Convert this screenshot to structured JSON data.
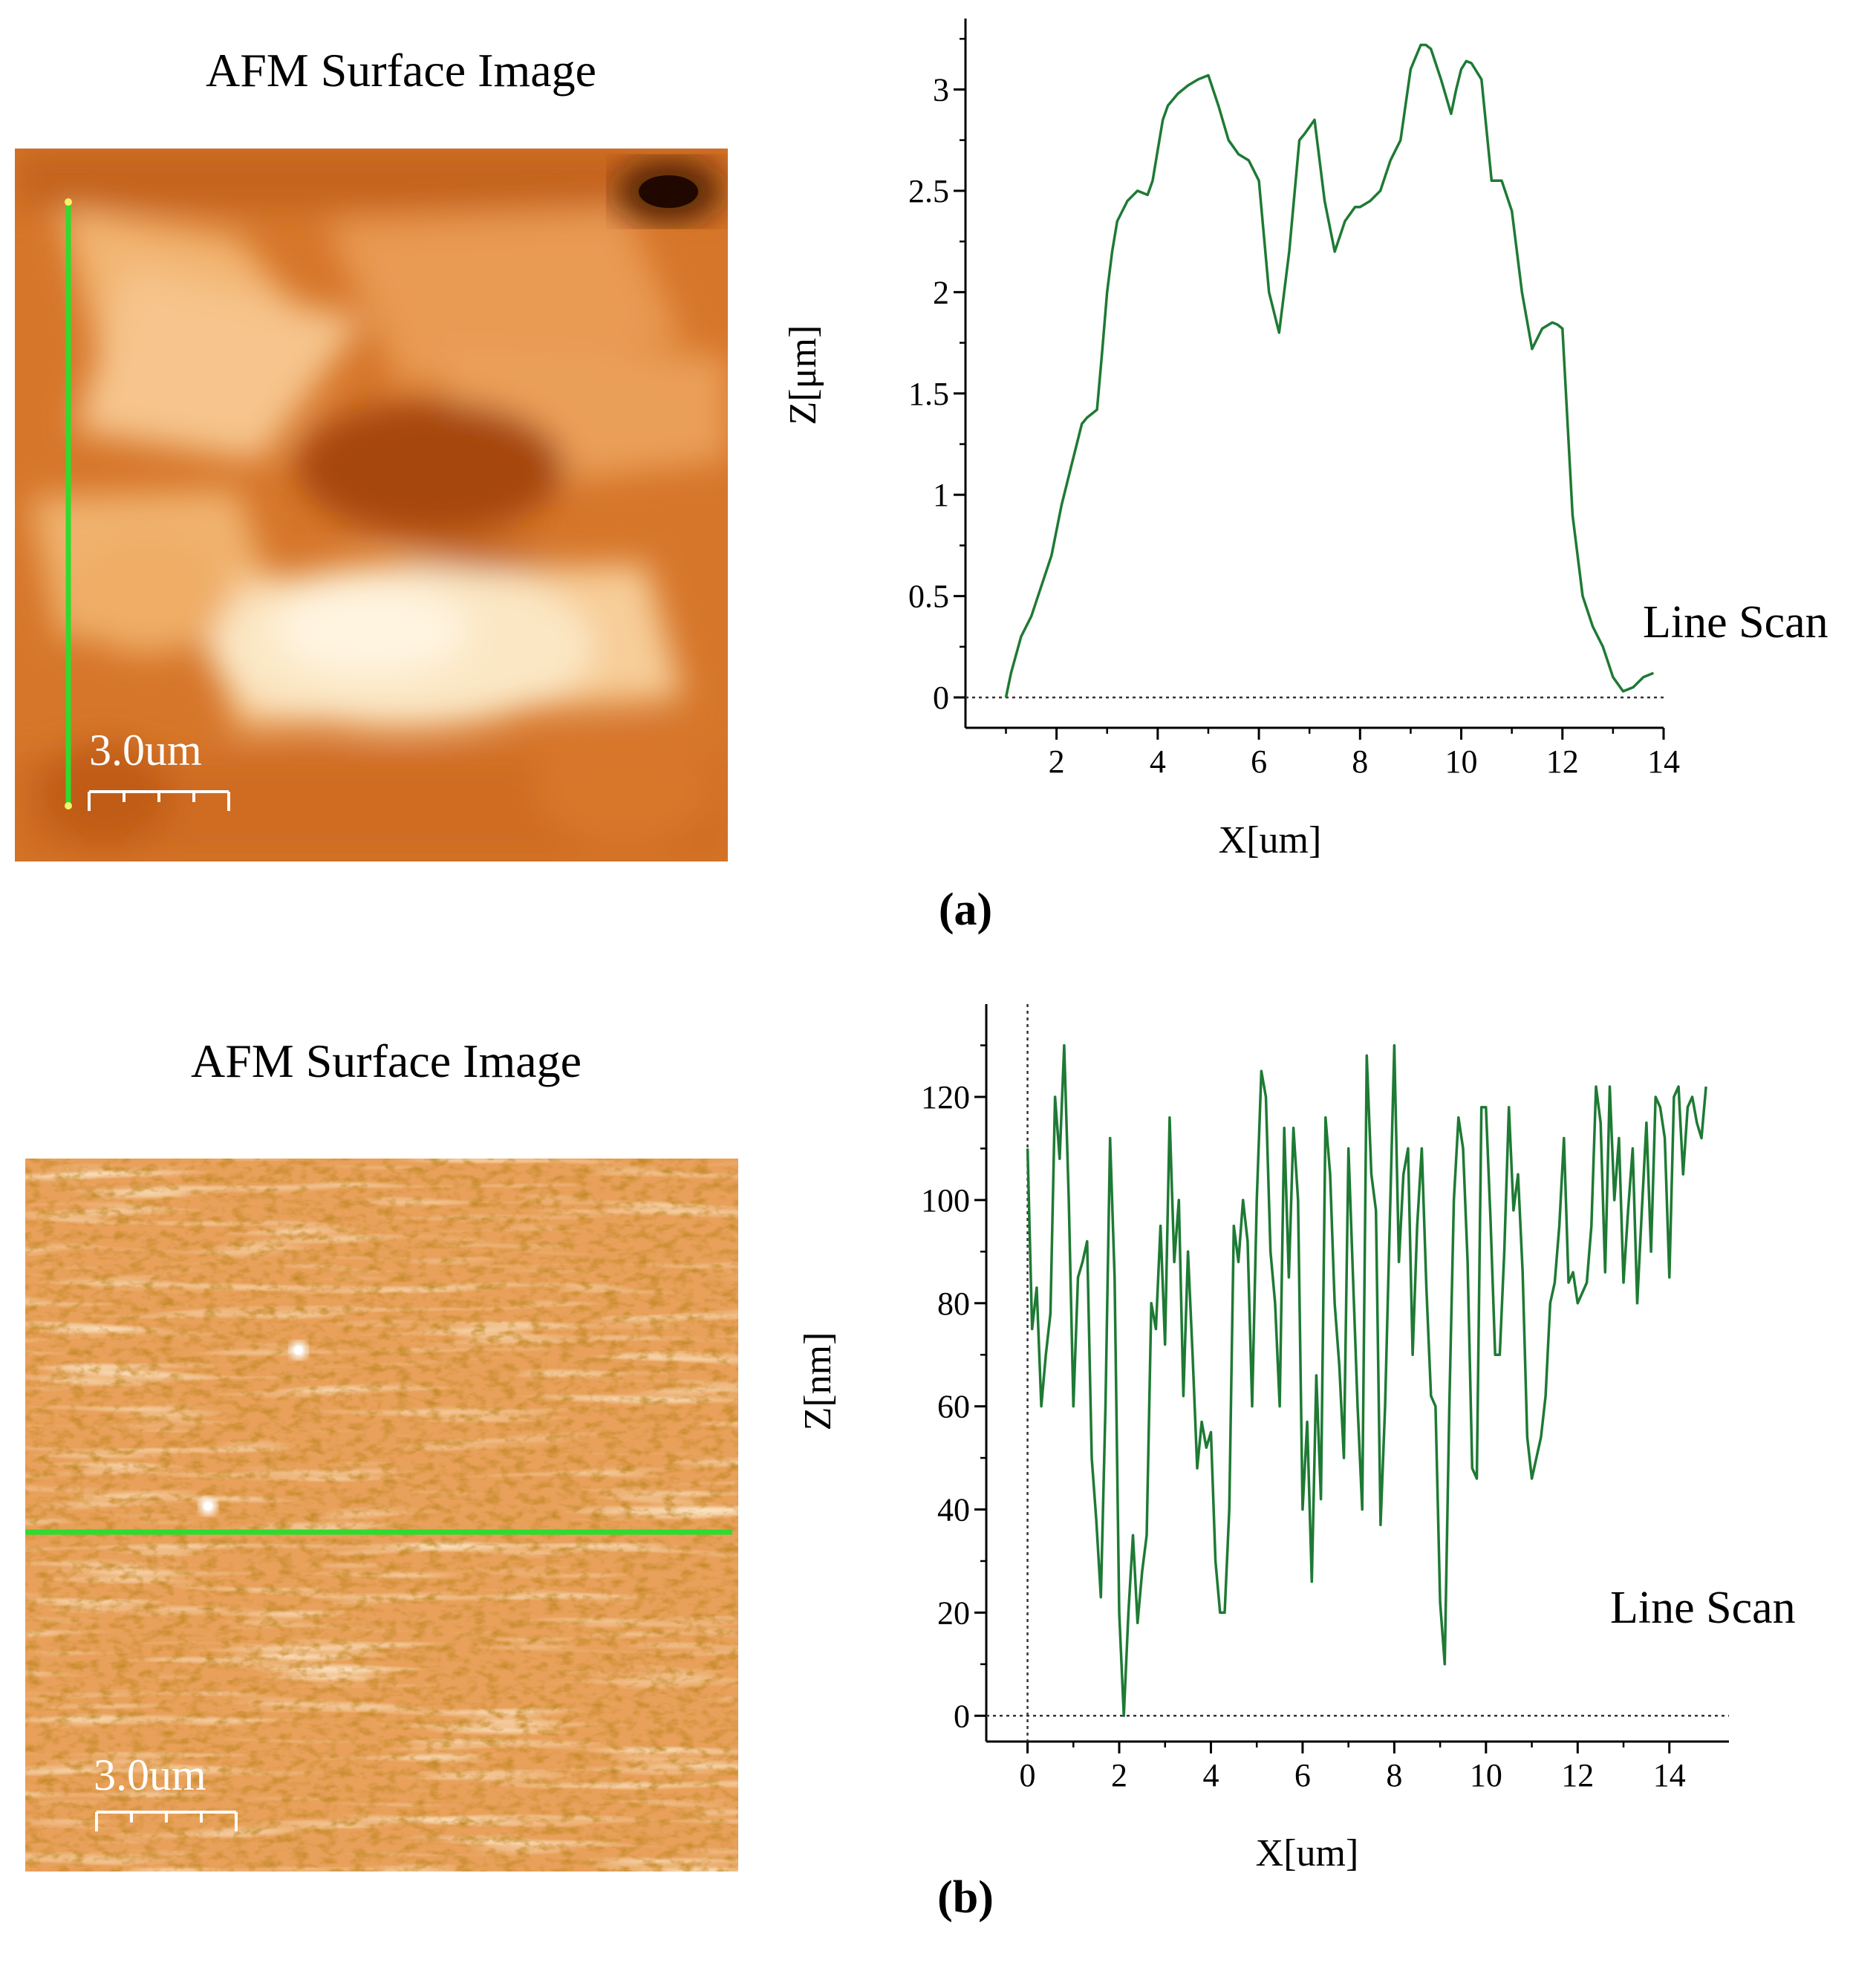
{
  "panels": [
    {
      "id": "a",
      "label": "(a)",
      "afm_title": "AFM Surface Image",
      "scale_bar": "3.0um",
      "colors": {
        "scan_line": "#2edb2e",
        "trace": "#1e7a34"
      },
      "afm_scan_direction": "vertical",
      "chart_data": {
        "type": "line",
        "title": "",
        "xlabel": "X[um]",
        "ylabel": "Z[μm]",
        "xlim": [
          0.2,
          14
        ],
        "ylim": [
          -0.15,
          3.35
        ],
        "xticks": [
          2,
          4,
          6,
          8,
          10,
          12,
          14
        ],
        "xtick_labels": [
          "2",
          "4",
          "6",
          "8",
          "10",
          "12",
          "14"
        ],
        "yticks": [
          0,
          0.5,
          1,
          1.5,
          2,
          2.5,
          3
        ],
        "ytick_labels": [
          "0",
          "0.5",
          "1",
          "1.5",
          "2",
          "2.5",
          "3"
        ],
        "zero_line": true,
        "annotation": "Line Scan",
        "series": [
          {
            "name": "Line Scan",
            "x": [
              1.0,
              1.1,
              1.3,
              1.5,
              1.7,
              1.9,
              2.1,
              2.3,
              2.5,
              2.6,
              2.8,
              2.9,
              3.0,
              3.1,
              3.2,
              3.4,
              3.6,
              3.8,
              3.9,
              4.0,
              4.1,
              4.2,
              4.4,
              4.6,
              4.8,
              5.0,
              5.2,
              5.4,
              5.6,
              5.8,
              6.0,
              6.2,
              6.4,
              6.6,
              6.8,
              6.9,
              7.1,
              7.3,
              7.5,
              7.7,
              7.9,
              8.0,
              8.2,
              8.4,
              8.6,
              8.8,
              9.0,
              9.2,
              9.3,
              9.4,
              9.6,
              9.8,
              9.9,
              10.0,
              10.1,
              10.2,
              10.4,
              10.6,
              10.8,
              11.0,
              11.2,
              11.4,
              11.6,
              11.8,
              11.9,
              12.0,
              12.2,
              12.4,
              12.6,
              12.8,
              13.0,
              13.2,
              13.4,
              13.6,
              13.8
            ],
            "y": [
              0.0,
              0.12,
              0.3,
              0.4,
              0.55,
              0.7,
              0.95,
              1.15,
              1.35,
              1.38,
              1.42,
              1.7,
              2.0,
              2.2,
              2.35,
              2.45,
              2.5,
              2.48,
              2.55,
              2.7,
              2.85,
              2.92,
              2.98,
              3.02,
              3.05,
              3.07,
              2.92,
              2.75,
              2.68,
              2.65,
              2.55,
              2.0,
              1.8,
              2.2,
              2.75,
              2.78,
              2.85,
              2.45,
              2.2,
              2.35,
              2.42,
              2.42,
              2.45,
              2.5,
              2.65,
              2.75,
              3.1,
              3.22,
              3.22,
              3.2,
              3.05,
              2.88,
              3.0,
              3.1,
              3.14,
              3.13,
              3.05,
              2.55,
              2.55,
              2.4,
              2.0,
              1.72,
              1.82,
              1.85,
              1.84,
              1.82,
              0.9,
              0.5,
              0.35,
              0.25,
              0.1,
              0.03,
              0.05,
              0.1,
              0.12
            ]
          }
        ]
      }
    },
    {
      "id": "b",
      "label": "(b)",
      "afm_title": "AFM Surface Image",
      "scale_bar": "3.0um",
      "colors": {
        "scan_line": "#2edb2e",
        "trace": "#1e7a34"
      },
      "afm_scan_direction": "horizontal",
      "chart_data": {
        "type": "line",
        "title": "",
        "xlabel": "X[um]",
        "ylabel": "Z[nm]",
        "xlim": [
          -0.9,
          15.3
        ],
        "ylim": [
          -5,
          138
        ],
        "xticks": [
          0,
          2,
          4,
          6,
          8,
          10,
          12,
          14
        ],
        "xtick_labels": [
          "0",
          "2",
          "4",
          "6",
          "8",
          "10",
          "12",
          "14"
        ],
        "yticks": [
          0,
          20,
          40,
          60,
          80,
          100,
          120
        ],
        "ytick_labels": [
          "0",
          "20",
          "40",
          "60",
          "80",
          "100",
          "120"
        ],
        "zero_line": true,
        "zero_vline": true,
        "annotation": "Line Scan",
        "series": [
          {
            "name": "Line Scan",
            "x": [
              0.0,
              0.1,
              0.2,
              0.3,
              0.4,
              0.5,
              0.6,
              0.7,
              0.8,
              0.9,
              1.0,
              1.1,
              1.2,
              1.3,
              1.4,
              1.5,
              1.6,
              1.7,
              1.8,
              1.9,
              2.0,
              2.1,
              2.2,
              2.3,
              2.4,
              2.5,
              2.6,
              2.7,
              2.8,
              2.9,
              3.0,
              3.1,
              3.2,
              3.3,
              3.4,
              3.5,
              3.6,
              3.7,
              3.8,
              3.9,
              4.0,
              4.1,
              4.2,
              4.3,
              4.4,
              4.5,
              4.6,
              4.7,
              4.8,
              4.9,
              5.0,
              5.1,
              5.2,
              5.3,
              5.4,
              5.5,
              5.6,
              5.7,
              5.8,
              5.9,
              6.0,
              6.1,
              6.2,
              6.3,
              6.4,
              6.5,
              6.6,
              6.7,
              6.8,
              6.9,
              7.0,
              7.1,
              7.2,
              7.3,
              7.4,
              7.5,
              7.6,
              7.7,
              7.8,
              7.9,
              8.0,
              8.1,
              8.2,
              8.3,
              8.4,
              8.5,
              8.6,
              8.7,
              8.8,
              8.9,
              9.0,
              9.1,
              9.2,
              9.3,
              9.4,
              9.5,
              9.6,
              9.7,
              9.8,
              9.9,
              10.0,
              10.1,
              10.2,
              10.3,
              10.4,
              10.5,
              10.6,
              10.7,
              10.8,
              10.9,
              11.0,
              11.1,
              11.2,
              11.3,
              11.4,
              11.5,
              11.6,
              11.7,
              11.8,
              11.9,
              12.0,
              12.1,
              12.2,
              12.3,
              12.4,
              12.5,
              12.6,
              12.7,
              12.8,
              12.9,
              13.0,
              13.1,
              13.2,
              13.3,
              13.4,
              13.5,
              13.6,
              13.7,
              13.8,
              13.9,
              14.0,
              14.1,
              14.2,
              14.3,
              14.4,
              14.5,
              14.6,
              14.7,
              14.8
            ],
            "y": [
              110,
              75,
              83,
              60,
              70,
              78,
              120,
              108,
              130,
              100,
              60,
              85,
              88,
              92,
              50,
              38,
              23,
              60,
              112,
              85,
              20,
              0,
              20,
              35,
              18,
              28,
              35,
              80,
              75,
              95,
              72,
              116,
              88,
              100,
              62,
              90,
              70,
              48,
              57,
              52,
              55,
              30,
              20,
              20,
              40,
              95,
              88,
              100,
              92,
              60,
              100,
              125,
              120,
              90,
              80,
              60,
              114,
              85,
              114,
              100,
              40,
              57,
              26,
              66,
              42,
              116,
              105,
              80,
              68,
              50,
              110,
              85,
              60,
              40,
              128,
              105,
              98,
              37,
              60,
              95,
              130,
              88,
              105,
              110,
              70,
              95,
              110,
              83,
              62,
              60,
              22,
              10,
              60,
              100,
              116,
              110,
              88,
              48,
              46,
              118,
              118,
              96,
              70,
              70,
              90,
              118,
              98,
              105,
              86,
              54,
              46,
              50,
              54,
              62,
              80,
              84,
              95,
              112,
              84,
              86,
              80,
              82,
              84,
              95,
              122,
              115,
              86,
              122,
              100,
              112,
              84,
              98,
              110,
              80,
              98,
              115,
              90,
              120,
              118,
              112,
              85,
              120,
              122,
              105,
              118,
              120,
              115,
              112,
              122
            ]
          }
        ]
      }
    }
  ]
}
